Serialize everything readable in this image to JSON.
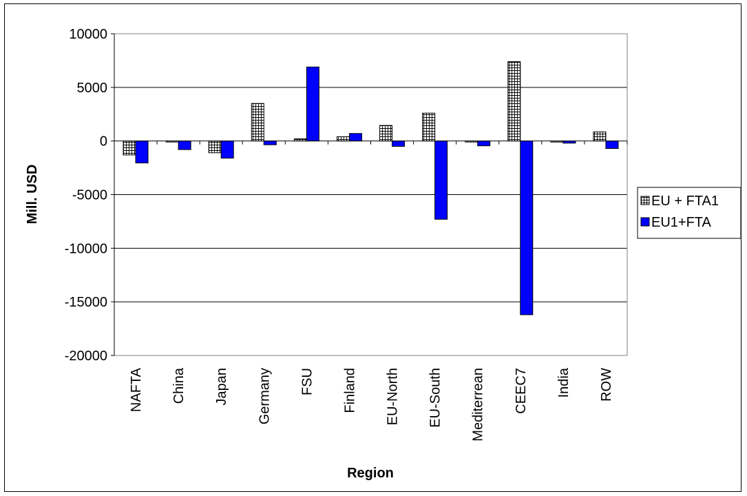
{
  "chart_data": {
    "type": "bar",
    "title": "",
    "xlabel": "Region",
    "ylabel": "Mill. USD",
    "ylim": [
      -20000,
      10000
    ],
    "yticks": [
      10000,
      5000,
      0,
      -5000,
      -10000,
      -15000,
      -20000
    ],
    "grid": true,
    "legend_position": "right",
    "categories": [
      "NAFTA",
      "China",
      "Japan",
      "Germany",
      "FSU",
      "Finland",
      "EU-North",
      "EU-South",
      "Mediterrean",
      "CEEC7",
      "India",
      "ROW"
    ],
    "series": [
      {
        "name": "EU + FTA1",
        "pattern": "grid-hatch",
        "color": "#ffffff",
        "values": [
          -1300,
          -50,
          -1100,
          3500,
          200,
          400,
          1450,
          2600,
          -50,
          7400,
          -100,
          850
        ]
      },
      {
        "name": "EU1+FTA",
        "pattern": "solid",
        "color": "#0000ff",
        "values": [
          -2050,
          -800,
          -1600,
          -350,
          6900,
          700,
          -500,
          -7300,
          -450,
          -16200,
          -200,
          -700
        ]
      }
    ]
  }
}
